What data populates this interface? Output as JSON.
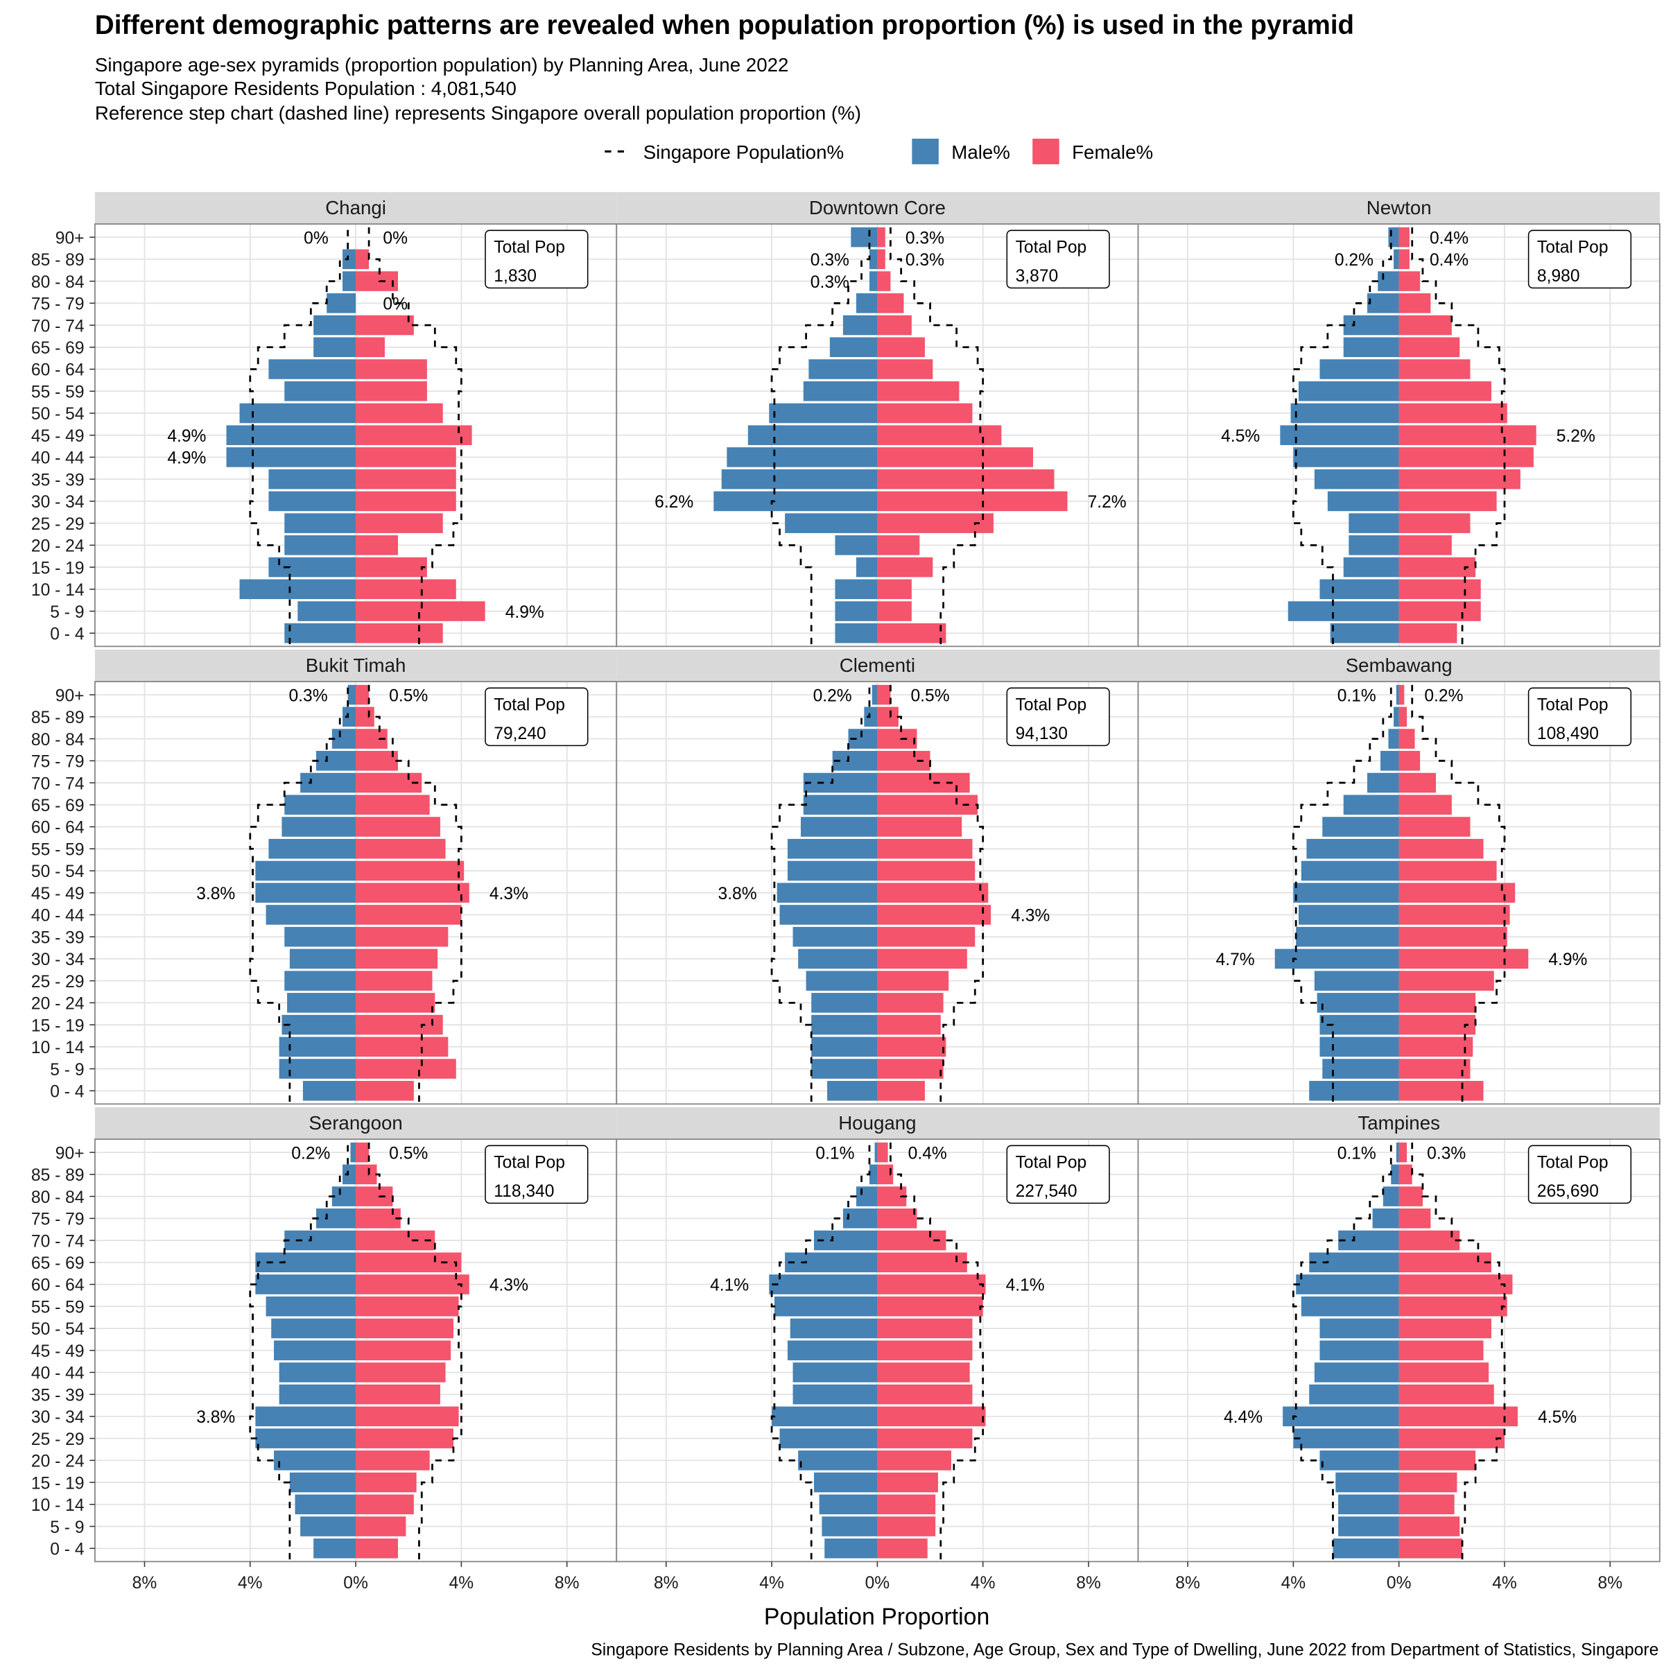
{
  "header": {
    "title": "Different demographic patterns are revealed when population proportion (%) is used in the pyramid",
    "subtitle_lines": [
      "Singapore age-sex pyramids (proportion population) by Planning Area, June 2022",
      "Total Singapore Residents Population : 4,081,540",
      "Reference step chart (dashed line) represents Singapore overall population proportion (%)"
    ]
  },
  "legend": {
    "items": [
      {
        "label": "Singapore Population%",
        "type": "dashed-line",
        "color": "#000000"
      },
      {
        "label": "Male%",
        "type": "box",
        "color": "#4682B4"
      },
      {
        "label": "Female%",
        "type": "box",
        "color": "#F4546C"
      }
    ]
  },
  "caption": "Singapore Residents by Planning Area / Subzone, Age Group, Sex and Type of Dwelling, June 2022 from Department of Statistics, Singapore",
  "chart_data": {
    "type": "bar",
    "subtype": "population-pyramid-facets",
    "xlabel": "Population Proportion",
    "ylabel": "",
    "xlim": [
      -9.9,
      9.9
    ],
    "x_ticks": [
      -8,
      -4,
      0,
      4,
      8
    ],
    "x_tick_labels": [
      "8%",
      "4%",
      "0%",
      "4%",
      "8%"
    ],
    "age_groups": [
      "0 - 4",
      "5 - 9",
      "10 - 14",
      "15 - 19",
      "20 - 24",
      "25 - 29",
      "30 - 34",
      "35 - 39",
      "40 - 44",
      "45 - 49",
      "50 - 54",
      "55 - 59",
      "60 - 64",
      "65 - 69",
      "70 - 74",
      "75 - 79",
      "80 - 84",
      "85 - 89",
      "90+"
    ],
    "total_pop_label": "Total Pop",
    "reference": {
      "name": "Singapore Population%",
      "male": [
        2.5,
        2.5,
        2.5,
        2.5,
        2.9,
        3.7,
        4.0,
        3.9,
        3.9,
        3.9,
        3.9,
        3.9,
        4.0,
        3.7,
        2.7,
        1.7,
        1.1,
        0.6,
        0.3
      ],
      "female": [
        2.4,
        2.4,
        2.5,
        2.5,
        2.9,
        3.7,
        4.0,
        4.0,
        4.0,
        4.0,
        3.9,
        3.9,
        4.0,
        3.8,
        3.0,
        2.0,
        1.4,
        0.9,
        0.5
      ]
    },
    "panels": [
      {
        "name": "Changi",
        "total_pop": "1,830",
        "male": [
          2.7,
          2.2,
          4.4,
          3.3,
          2.7,
          2.7,
          3.3,
          3.3,
          4.9,
          4.9,
          4.4,
          2.7,
          3.3,
          1.6,
          1.6,
          1.1,
          0.5,
          0.5,
          0
        ],
        "female": [
          3.3,
          4.9,
          3.8,
          2.7,
          1.6,
          3.3,
          3.8,
          3.8,
          3.8,
          4.4,
          3.3,
          2.7,
          2.7,
          1.1,
          2.2,
          0,
          1.6,
          0.5,
          0
        ],
        "labels": [
          {
            "age": 18,
            "side": "male",
            "value": 0,
            "text": "0%"
          },
          {
            "age": 18,
            "side": "female",
            "value": 0,
            "text": "0%"
          },
          {
            "age": 15,
            "side": "female",
            "value": 0,
            "text": "0%"
          },
          {
            "age": 9,
            "side": "male",
            "value": 4.9,
            "text": "4.9%"
          },
          {
            "age": 8,
            "side": "male",
            "value": 4.9,
            "text": "4.9%"
          },
          {
            "age": 1,
            "side": "female",
            "value": 4.9,
            "text": "4.9%"
          }
        ]
      },
      {
        "name": "Downtown Core",
        "total_pop": "3,870",
        "male": [
          1.6,
          1.6,
          1.6,
          0.8,
          1.6,
          3.5,
          6.2,
          5.9,
          5.7,
          4.9,
          4.1,
          2.8,
          2.6,
          1.8,
          1.3,
          0.8,
          0.3,
          0.3,
          1.0
        ],
        "female": [
          2.6,
          1.3,
          1.3,
          2.1,
          1.6,
          4.4,
          7.2,
          6.7,
          5.9,
          4.7,
          3.6,
          3.1,
          2.1,
          1.8,
          1.3,
          1.0,
          0.5,
          0.3,
          0.3
        ],
        "labels": [
          {
            "age": 18,
            "side": "female",
            "value": 0.3,
            "text": "0.3%"
          },
          {
            "age": 17,
            "side": "male",
            "value": 0.3,
            "text": "0.3%"
          },
          {
            "age": 17,
            "side": "female",
            "value": 0.3,
            "text": "0.3%"
          },
          {
            "age": 16,
            "side": "male",
            "value": 0.3,
            "text": "0.3%"
          },
          {
            "age": 6,
            "side": "male",
            "value": 6.2,
            "text": "6.2%"
          },
          {
            "age": 6,
            "side": "female",
            "value": 7.2,
            "text": "7.2%"
          }
        ]
      },
      {
        "name": "Newton",
        "total_pop": "8,980",
        "male": [
          2.6,
          4.2,
          3.0,
          2.1,
          1.9,
          1.9,
          2.7,
          3.2,
          4.0,
          4.5,
          4.1,
          3.8,
          3.0,
          2.1,
          2.1,
          1.2,
          0.8,
          0.2,
          0.4
        ],
        "female": [
          2.2,
          3.1,
          3.1,
          2.9,
          2.0,
          2.7,
          3.7,
          4.6,
          5.1,
          5.2,
          4.1,
          3.5,
          2.7,
          2.3,
          2.0,
          1.2,
          0.8,
          0.4,
          0.4
        ],
        "labels": [
          {
            "age": 18,
            "side": "female",
            "value": 0.4,
            "text": "0.4%"
          },
          {
            "age": 17,
            "side": "male",
            "value": 0.2,
            "text": "0.2%"
          },
          {
            "age": 17,
            "side": "female",
            "value": 0.4,
            "text": "0.4%"
          },
          {
            "age": 9,
            "side": "male",
            "value": 4.5,
            "text": "4.5%"
          },
          {
            "age": 9,
            "side": "female",
            "value": 5.2,
            "text": "5.2%"
          }
        ]
      },
      {
        "name": "Bukit Timah",
        "total_pop": "79,240",
        "male": [
          2.0,
          2.9,
          2.9,
          2.8,
          2.6,
          2.7,
          2.5,
          2.7,
          3.4,
          3.8,
          3.8,
          3.3,
          2.8,
          2.7,
          2.1,
          1.5,
          0.9,
          0.5,
          0.3
        ],
        "female": [
          2.2,
          3.8,
          3.5,
          3.3,
          3.0,
          2.9,
          3.1,
          3.5,
          4.0,
          4.3,
          4.1,
          3.4,
          3.2,
          2.8,
          2.5,
          1.6,
          1.2,
          0.7,
          0.5
        ],
        "labels": [
          {
            "age": 18,
            "side": "male",
            "value": 0.3,
            "text": "0.3%"
          },
          {
            "age": 18,
            "side": "female",
            "value": 0.5,
            "text": "0.5%"
          },
          {
            "age": 9,
            "side": "male",
            "value": 3.8,
            "text": "3.8%"
          },
          {
            "age": 9,
            "side": "female",
            "value": 4.3,
            "text": "4.3%"
          }
        ]
      },
      {
        "name": "Clementi",
        "total_pop": "94,130",
        "male": [
          1.9,
          2.5,
          2.5,
          2.5,
          2.5,
          2.7,
          3.0,
          3.2,
          3.7,
          3.8,
          3.4,
          3.4,
          2.9,
          2.8,
          2.8,
          1.7,
          1.1,
          0.5,
          0.2
        ],
        "female": [
          1.8,
          2.5,
          2.6,
          2.4,
          2.5,
          2.7,
          3.4,
          3.7,
          4.3,
          4.2,
          3.7,
          3.6,
          3.2,
          3.8,
          3.5,
          2.0,
          1.5,
          0.8,
          0.5
        ],
        "labels": [
          {
            "age": 18,
            "side": "male",
            "value": 0.2,
            "text": "0.2%"
          },
          {
            "age": 18,
            "side": "female",
            "value": 0.5,
            "text": "0.5%"
          },
          {
            "age": 9,
            "side": "male",
            "value": 3.8,
            "text": "3.8%"
          },
          {
            "age": 8,
            "side": "female",
            "value": 4.3,
            "text": "4.3%"
          }
        ]
      },
      {
        "name": "Sembawang",
        "total_pop": "108,490",
        "male": [
          3.4,
          2.9,
          3.0,
          3.0,
          3.1,
          3.2,
          4.7,
          3.9,
          3.8,
          4.0,
          3.7,
          3.5,
          2.9,
          2.1,
          1.2,
          0.7,
          0.4,
          0.2,
          0.1
        ],
        "female": [
          3.2,
          2.7,
          2.8,
          2.9,
          2.9,
          3.6,
          4.9,
          4.1,
          4.2,
          4.4,
          3.7,
          3.2,
          2.7,
          2.0,
          1.4,
          0.8,
          0.6,
          0.3,
          0.2
        ],
        "labels": [
          {
            "age": 18,
            "side": "male",
            "value": 0.1,
            "text": "0.1%"
          },
          {
            "age": 18,
            "side": "female",
            "value": 0.2,
            "text": "0.2%"
          },
          {
            "age": 6,
            "side": "male",
            "value": 4.7,
            "text": "4.7%"
          },
          {
            "age": 6,
            "side": "female",
            "value": 4.9,
            "text": "4.9%"
          }
        ]
      },
      {
        "name": "Serangoon",
        "total_pop": "118,340",
        "male": [
          1.6,
          2.1,
          2.3,
          2.5,
          3.1,
          3.8,
          3.8,
          2.9,
          2.9,
          3.1,
          3.2,
          3.4,
          3.8,
          3.8,
          2.7,
          1.5,
          0.9,
          0.5,
          0.2
        ],
        "female": [
          1.6,
          1.9,
          2.2,
          2.3,
          2.8,
          3.7,
          3.9,
          3.2,
          3.4,
          3.6,
          3.7,
          3.9,
          4.3,
          4.0,
          3.0,
          1.7,
          1.4,
          0.8,
          0.5
        ],
        "labels": [
          {
            "age": 18,
            "side": "male",
            "value": 0.2,
            "text": "0.2%"
          },
          {
            "age": 18,
            "side": "female",
            "value": 0.5,
            "text": "0.5%"
          },
          {
            "age": 6,
            "side": "male",
            "value": 3.8,
            "text": "3.8%"
          },
          {
            "age": 12,
            "side": "female",
            "value": 4.3,
            "text": "4.3%"
          }
        ]
      },
      {
        "name": "Hougang",
        "total_pop": "227,540",
        "male": [
          2.0,
          2.1,
          2.2,
          2.4,
          3.0,
          3.7,
          4.0,
          3.2,
          3.2,
          3.4,
          3.3,
          3.9,
          4.1,
          3.5,
          2.4,
          1.3,
          0.8,
          0.3,
          0.1
        ],
        "female": [
          1.9,
          2.2,
          2.2,
          2.3,
          2.8,
          3.6,
          4.1,
          3.6,
          3.5,
          3.6,
          3.6,
          4.0,
          4.1,
          3.4,
          2.6,
          1.5,
          1.1,
          0.6,
          0.4
        ],
        "labels": [
          {
            "age": 18,
            "side": "male",
            "value": 0.1,
            "text": "0.1%"
          },
          {
            "age": 18,
            "side": "female",
            "value": 0.4,
            "text": "0.4%"
          },
          {
            "age": 12,
            "side": "male",
            "value": 4.1,
            "text": "4.1%"
          },
          {
            "age": 12,
            "side": "female",
            "value": 4.1,
            "text": "4.1%"
          }
        ]
      },
      {
        "name": "Tampines",
        "total_pop": "265,690",
        "male": [
          2.5,
          2.3,
          2.3,
          2.4,
          3.0,
          4.0,
          4.4,
          3.4,
          3.2,
          3.0,
          3.0,
          3.7,
          3.9,
          3.4,
          2.3,
          1.0,
          0.6,
          0.3,
          0.1
        ],
        "female": [
          2.4,
          2.3,
          2.1,
          2.2,
          2.9,
          4.0,
          4.5,
          3.6,
          3.4,
          3.2,
          3.5,
          4.1,
          4.3,
          3.5,
          2.3,
          1.2,
          0.9,
          0.5,
          0.3
        ],
        "labels": [
          {
            "age": 18,
            "side": "male",
            "value": 0.1,
            "text": "0.1%"
          },
          {
            "age": 18,
            "side": "female",
            "value": 0.3,
            "text": "0.3%"
          },
          {
            "age": 6,
            "side": "male",
            "value": 4.4,
            "text": "4.4%"
          },
          {
            "age": 6,
            "side": "female",
            "value": 4.5,
            "text": "4.5%"
          }
        ]
      }
    ]
  }
}
